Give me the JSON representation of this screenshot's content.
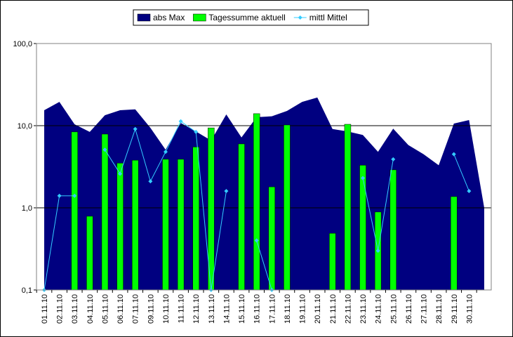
{
  "chart_data": {
    "type": "combo",
    "yscale": "log",
    "grid": true,
    "legend": "top",
    "categories": [
      "01.11.10",
      "02.11.10",
      "03.11.10",
      "04.11.10",
      "05.11.10",
      "06.11.10",
      "07.11.10",
      "09.11.10",
      "10.11.10",
      "11.11.10",
      "12.11.10",
      "13.11.10",
      "14.11.10",
      "15.11.10",
      "16.11.10",
      "17.11.10",
      "18.11.10",
      "19.11.10",
      "20.11.10",
      "21.11.10",
      "22.11.10",
      "23.11.10",
      "24.11.10",
      "25.11.10",
      "26.11.10",
      "27.11.10",
      "28.11.10",
      "29.11.10",
      "30.11.10",
      null
    ],
    "ylim": [
      0.1,
      100
    ],
    "yticks": [
      {
        "value": 0.1,
        "label": "0,1"
      },
      {
        "value": 1,
        "label": "1,0"
      },
      {
        "value": 10,
        "label": "10,0"
      },
      {
        "value": 100,
        "label": "100,0"
      }
    ],
    "series": [
      {
        "name": "abs Max",
        "type": "area",
        "color": "#000080",
        "values": [
          15.4,
          19.5,
          10.4,
          8.4,
          13.4,
          15.4,
          15.8,
          9.4,
          5.1,
          10.8,
          8.5,
          6.6,
          13.7,
          7.2,
          12.7,
          13.0,
          15.1,
          19.5,
          22,
          9.1,
          8.5,
          7.7,
          4.8,
          9.2,
          5.8,
          4.5,
          3.3,
          10.6,
          11.7,
          1.0
        ]
      },
      {
        "name": "Tagessumme aktuell",
        "type": "bar",
        "color": "#00ff00",
        "values": [
          null,
          null,
          8.4,
          0.79,
          7.9,
          3.5,
          3.8,
          null,
          3.9,
          3.9,
          5.5,
          9.4,
          null,
          6.0,
          14.0,
          1.8,
          10.2,
          null,
          null,
          0.49,
          10.4,
          3.3,
          0.89,
          2.9,
          null,
          null,
          null,
          1.37,
          null,
          null
        ]
      },
      {
        "name": "mittl Mittel",
        "type": "line",
        "color": "#33ccff",
        "values": [
          0.1,
          1.4,
          1.4,
          null,
          5.1,
          2.6,
          9.1,
          2.1,
          4.8,
          11.3,
          8.4,
          0.1,
          1.6,
          null,
          0.4,
          0.1,
          null,
          null,
          null,
          null,
          null,
          2.3,
          0.3,
          3.9,
          null,
          null,
          null,
          4.5,
          1.6,
          null
        ]
      }
    ]
  }
}
